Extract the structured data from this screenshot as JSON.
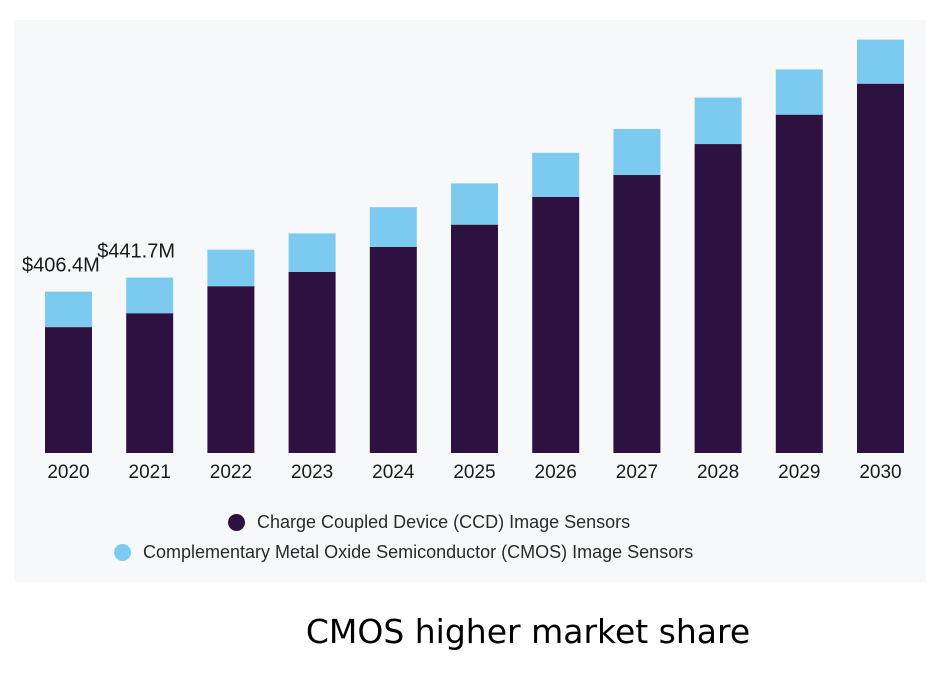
{
  "chart_data": {
    "type": "bar",
    "stacked": true,
    "categories": [
      "2020",
      "2021",
      "2022",
      "2023",
      "2024",
      "2025",
      "2026",
      "2027",
      "2028",
      "2029",
      "2030"
    ],
    "series": [
      {
        "name": "Charge Coupled Device (CCD) Image Sensors",
        "color": "#2d1140",
        "values": [
          317,
          352,
          420,
          456,
          519,
          575,
          645,
          700,
          778,
          852,
          930
        ]
      },
      {
        "name": "Complementary Metal Oxide Semiconductor (CMOS) Image Sensors",
        "color": "#7ccaf0",
        "values": [
          89.4,
          89.7,
          92,
          97,
          100,
          104,
          111,
          116,
          117,
          114,
          111
        ]
      }
    ],
    "data_labels": [
      {
        "category": "2020",
        "text": "$406.4M"
      },
      {
        "category": "2021",
        "text": "$441.7M"
      }
    ],
    "ylim": [
      0,
      1040
    ],
    "grid": false,
    "legend_position": "bottom"
  },
  "caption": "CMOS higher market share"
}
